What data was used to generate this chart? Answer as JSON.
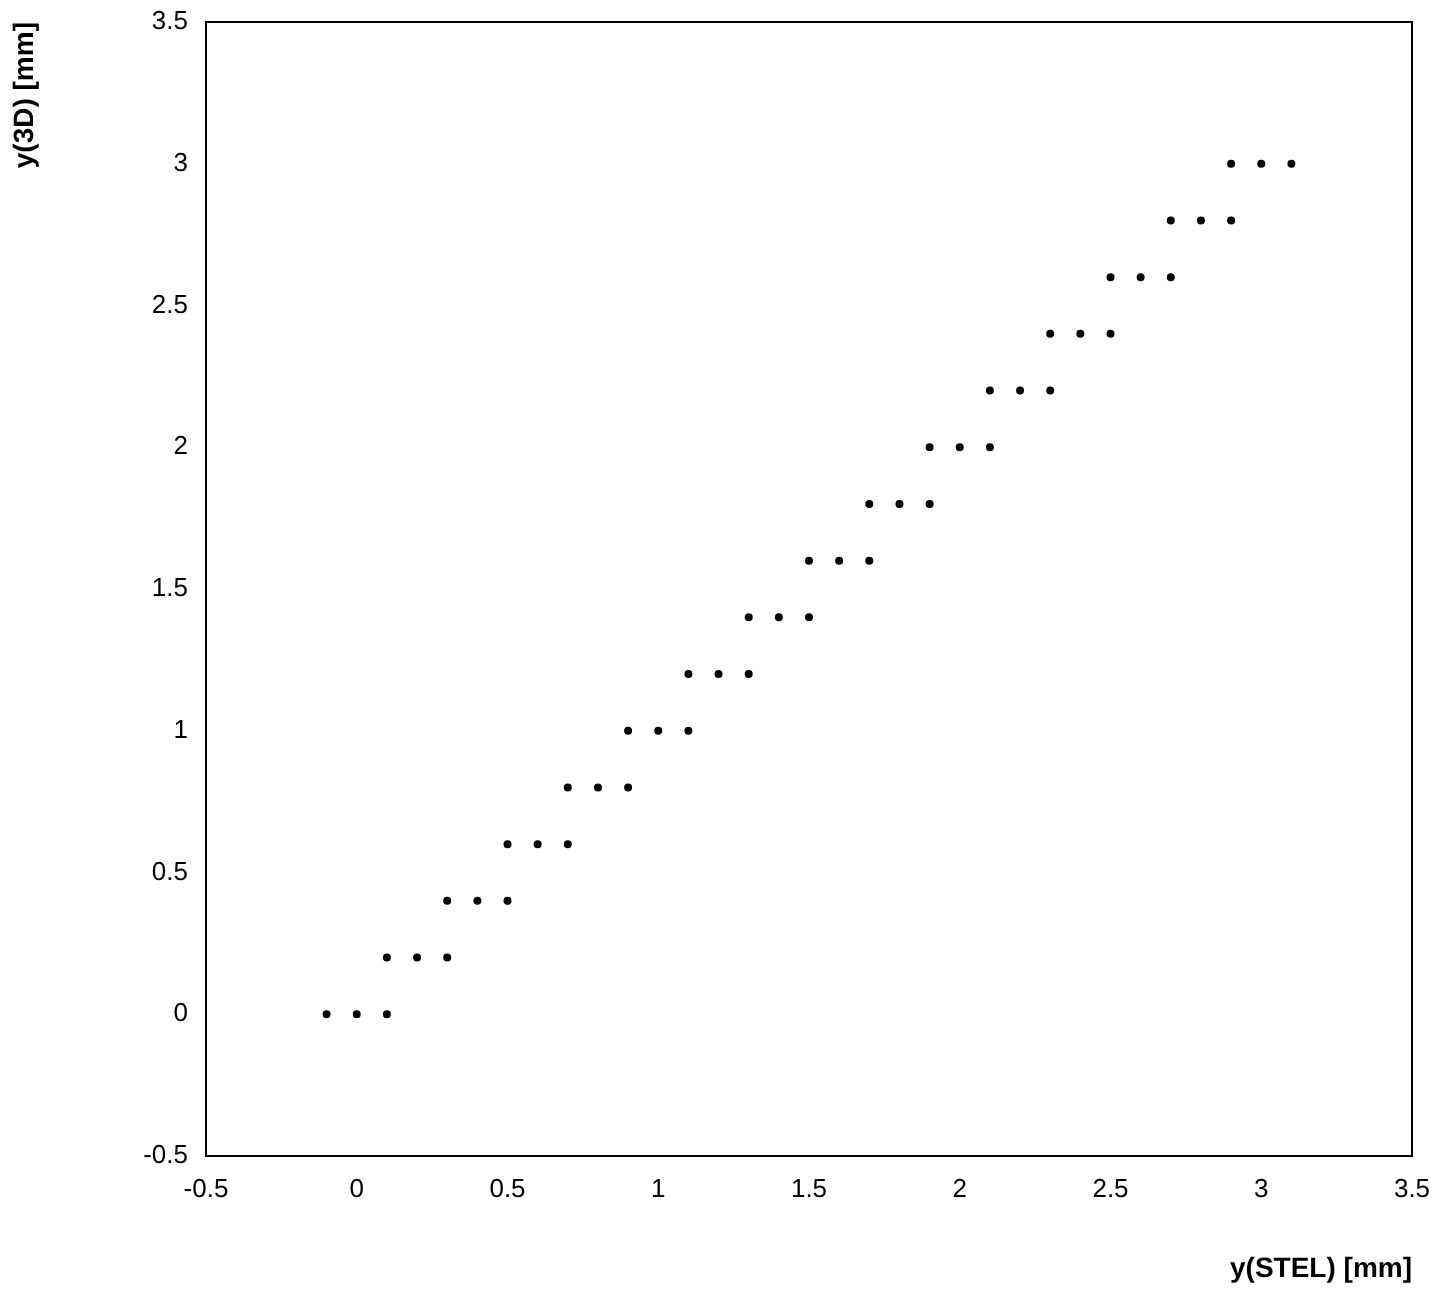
{
  "chart_data": {
    "type": "scatter",
    "xlabel": "y(STEL) [mm]",
    "ylabel": "y(3D) [mm]",
    "x": [
      -0.1,
      0,
      0.1,
      0.1,
      0.2,
      0.3,
      0.3,
      0.4,
      0.5,
      0.5,
      0.6,
      0.7,
      0.7,
      0.8,
      0.9,
      0.9,
      1,
      1.1,
      1.1,
      1.2,
      1.3,
      1.3,
      1.4,
      1.5,
      1.5,
      1.6,
      1.7,
      1.7,
      1.8,
      1.9,
      1.9,
      2,
      2.1,
      2.1,
      2.2,
      2.3,
      2.3,
      2.4,
      2.5,
      2.5,
      2.6,
      2.7,
      2.7,
      2.8,
      2.9,
      2.9,
      3,
      3.1
    ],
    "values": [
      0,
      0,
      0,
      0.2,
      0.2,
      0.2,
      0.4,
      0.4,
      0.4,
      0.6,
      0.6,
      0.6,
      0.8,
      0.8,
      0.8,
      1,
      1,
      1,
      1.2,
      1.2,
      1.2,
      1.4,
      1.4,
      1.4,
      1.6,
      1.6,
      1.6,
      1.8,
      1.8,
      1.8,
      2,
      2,
      2,
      2.2,
      2.2,
      2.2,
      2.4,
      2.4,
      2.4,
      2.6,
      2.6,
      2.6,
      2.8,
      2.8,
      2.8,
      3,
      3,
      3
    ],
    "color": "#000000",
    "marker": "circle",
    "grid": false,
    "legend": false,
    "xlim": [
      -0.5,
      3.5
    ],
    "ylim": [
      -0.5,
      3.5
    ],
    "xticks": [
      -0.5,
      0,
      0.5,
      1,
      1.5,
      2,
      2.5,
      3,
      3.5
    ],
    "yticks": [
      -0.5,
      0,
      0.5,
      1,
      1.5,
      2,
      2.5,
      3,
      3.5
    ]
  }
}
